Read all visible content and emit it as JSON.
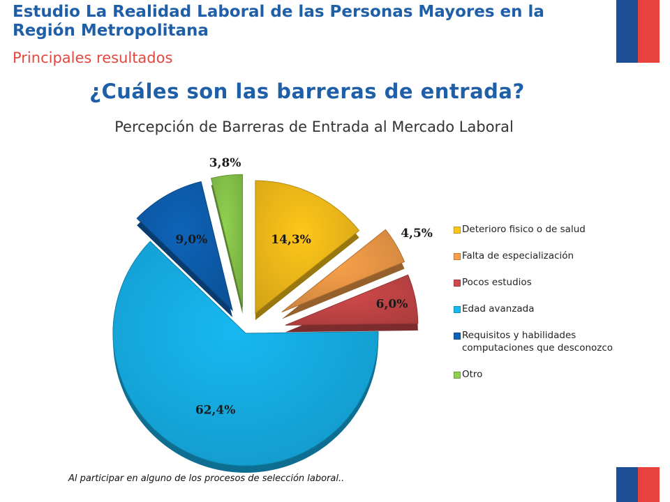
{
  "header": {
    "title": "Estudio La Realidad Laboral de las Personas Mayores en la Región Metropolitana",
    "subtitle": "Principales resultados"
  },
  "question": "¿Cuáles son las barreras de entrada?",
  "chart_data": {
    "type": "pie",
    "title": "Percepción de Barreras de Entrada al Mercado Laboral",
    "categories": [
      "Deterioro fisico o de salud",
      "Falta de especialización",
      "Pocos estudios",
      "Edad avanzada",
      "Requisitos y habilidades computaciones que desconozco",
      "Otro"
    ],
    "values": [
      14.3,
      4.5,
      6.0,
      62.4,
      9.0,
      3.8
    ],
    "data_labels": [
      "14,3%",
      "4,5%",
      "6,0%",
      "62,4%",
      "9,0%",
      "3,8%"
    ],
    "colors": [
      "#ffc61a",
      "#f8a04a",
      "#d0494b",
      "#17b8f2",
      "#0e63b8",
      "#8fd14f"
    ],
    "legend_position": "right"
  },
  "footnote": "Al participar en alguno de los procesos de selección laboral.."
}
